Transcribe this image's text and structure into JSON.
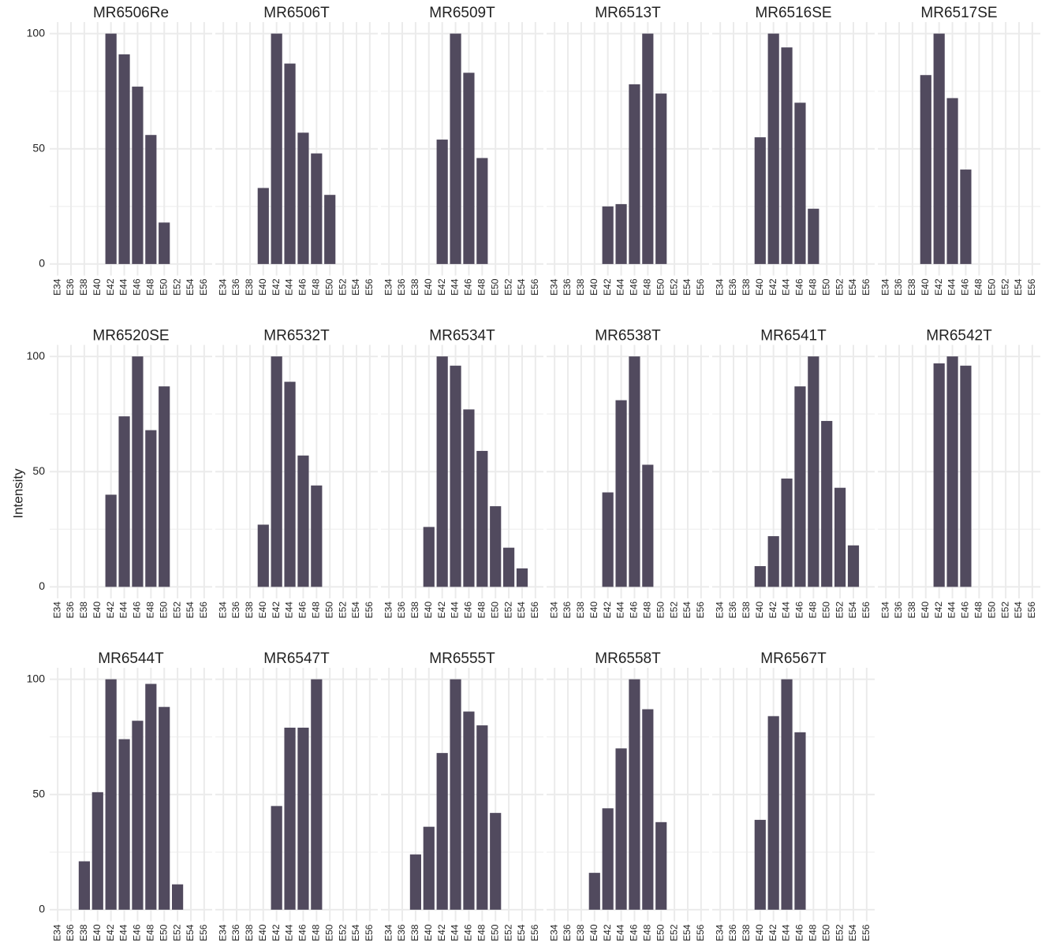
{
  "y_label": "Intensity",
  "chart_data": [
    {
      "type": "bar",
      "title": "MR6506Re",
      "categories": [
        "E34",
        "E36",
        "E38",
        "E40",
        "E42",
        "E44",
        "E46",
        "E48",
        "E50",
        "E52",
        "E54",
        "E56"
      ],
      "values": [
        0,
        0,
        0,
        0,
        100,
        91,
        77,
        56,
        18,
        0,
        0,
        0
      ],
      "color": "#514a5e",
      "ylim": [
        -5,
        105
      ],
      "yticks": [
        0,
        50,
        100
      ],
      "minor_yticks": [
        25,
        75
      ],
      "grid": true
    },
    {
      "type": "bar",
      "title": "MR6506T",
      "categories": [
        "E34",
        "E36",
        "E38",
        "E40",
        "E42",
        "E44",
        "E46",
        "E48",
        "E50",
        "E52",
        "E54",
        "E56"
      ],
      "values": [
        0,
        0,
        0,
        33,
        100,
        87,
        57,
        48,
        30,
        0,
        0,
        0
      ],
      "color": "#514a5e",
      "ylim": [
        -5,
        105
      ],
      "yticks": [
        0,
        50,
        100
      ],
      "minor_yticks": [
        25,
        75
      ],
      "grid": true
    },
    {
      "type": "bar",
      "title": "MR6509T",
      "categories": [
        "E34",
        "E36",
        "E38",
        "E40",
        "E42",
        "E44",
        "E46",
        "E48",
        "E50",
        "E52",
        "E54",
        "E56"
      ],
      "values": [
        0,
        0,
        0,
        0,
        54,
        100,
        83,
        46,
        0,
        0,
        0,
        0
      ],
      "color": "#514a5e",
      "ylim": [
        -5,
        105
      ],
      "yticks": [
        0,
        50,
        100
      ],
      "minor_yticks": [
        25,
        75
      ],
      "grid": true
    },
    {
      "type": "bar",
      "title": "MR6513T",
      "categories": [
        "E34",
        "E36",
        "E38",
        "E40",
        "E42",
        "E44",
        "E46",
        "E48",
        "E50",
        "E52",
        "E54",
        "E56"
      ],
      "values": [
        0,
        0,
        0,
        0,
        25,
        26,
        78,
        100,
        74,
        0,
        0,
        0
      ],
      "color": "#514a5e",
      "ylim": [
        -5,
        105
      ],
      "yticks": [
        0,
        50,
        100
      ],
      "minor_yticks": [
        25,
        75
      ],
      "grid": true
    },
    {
      "type": "bar",
      "title": "MR6516SE",
      "categories": [
        "E34",
        "E36",
        "E38",
        "E40",
        "E42",
        "E44",
        "E46",
        "E48",
        "E50",
        "E52",
        "E54",
        "E56"
      ],
      "values": [
        0,
        0,
        0,
        55,
        100,
        94,
        70,
        24,
        0,
        0,
        0,
        0
      ],
      "color": "#514a5e",
      "ylim": [
        -5,
        105
      ],
      "yticks": [
        0,
        50,
        100
      ],
      "minor_yticks": [
        25,
        75
      ],
      "grid": true
    },
    {
      "type": "bar",
      "title": "MR6517SE",
      "categories": [
        "E34",
        "E36",
        "E38",
        "E40",
        "E42",
        "E44",
        "E46",
        "E48",
        "E50",
        "E52",
        "E54",
        "E56"
      ],
      "values": [
        0,
        0,
        0,
        82,
        100,
        72,
        41,
        0,
        0,
        0,
        0,
        0
      ],
      "color": "#514a5e",
      "ylim": [
        -5,
        105
      ],
      "yticks": [
        0,
        50,
        100
      ],
      "minor_yticks": [
        25,
        75
      ],
      "grid": true
    },
    {
      "type": "bar",
      "title": "MR6520SE",
      "categories": [
        "E34",
        "E36",
        "E38",
        "E40",
        "E42",
        "E44",
        "E46",
        "E48",
        "E50",
        "E52",
        "E54",
        "E56"
      ],
      "values": [
        0,
        0,
        0,
        0,
        40,
        74,
        100,
        68,
        87,
        0,
        0,
        0
      ],
      "color": "#514a5e",
      "ylim": [
        -5,
        105
      ],
      "yticks": [
        0,
        50,
        100
      ],
      "minor_yticks": [
        25,
        75
      ],
      "grid": true
    },
    {
      "type": "bar",
      "title": "MR6532T",
      "categories": [
        "E34",
        "E36",
        "E38",
        "E40",
        "E42",
        "E44",
        "E46",
        "E48",
        "E50",
        "E52",
        "E54",
        "E56"
      ],
      "values": [
        0,
        0,
        0,
        27,
        100,
        89,
        57,
        44,
        0,
        0,
        0,
        0
      ],
      "color": "#514a5e",
      "ylim": [
        -5,
        105
      ],
      "yticks": [
        0,
        50,
        100
      ],
      "minor_yticks": [
        25,
        75
      ],
      "grid": true
    },
    {
      "type": "bar",
      "title": "MR6534T",
      "categories": [
        "E34",
        "E36",
        "E38",
        "E40",
        "E42",
        "E44",
        "E46",
        "E48",
        "E50",
        "E52",
        "E54",
        "E56"
      ],
      "values": [
        0,
        0,
        0,
        26,
        100,
        96,
        77,
        59,
        35,
        17,
        8,
        0
      ],
      "color": "#514a5e",
      "ylim": [
        -5,
        105
      ],
      "yticks": [
        0,
        50,
        100
      ],
      "minor_yticks": [
        25,
        75
      ],
      "grid": true
    },
    {
      "type": "bar",
      "title": "MR6538T",
      "categories": [
        "E34",
        "E36",
        "E38",
        "E40",
        "E42",
        "E44",
        "E46",
        "E48",
        "E50",
        "E52",
        "E54",
        "E56"
      ],
      "values": [
        0,
        0,
        0,
        0,
        41,
        81,
        100,
        53,
        0,
        0,
        0,
        0
      ],
      "color": "#514a5e",
      "ylim": [
        -5,
        105
      ],
      "yticks": [
        0,
        50,
        100
      ],
      "minor_yticks": [
        25,
        75
      ],
      "grid": true
    },
    {
      "type": "bar",
      "title": "MR6541T",
      "categories": [
        "E34",
        "E36",
        "E38",
        "E40",
        "E42",
        "E44",
        "E46",
        "E48",
        "E50",
        "E52",
        "E54",
        "E56"
      ],
      "values": [
        0,
        0,
        0,
        9,
        22,
        47,
        87,
        100,
        72,
        43,
        18,
        0
      ],
      "color": "#514a5e",
      "ylim": [
        -5,
        105
      ],
      "yticks": [
        0,
        50,
        100
      ],
      "minor_yticks": [
        25,
        75
      ],
      "grid": true
    },
    {
      "type": "bar",
      "title": "MR6542T",
      "categories": [
        "E34",
        "E36",
        "E38",
        "E40",
        "E42",
        "E44",
        "E46",
        "E48",
        "E50",
        "E52",
        "E54",
        "E56"
      ],
      "values": [
        0,
        0,
        0,
        0,
        97,
        100,
        96,
        0,
        0,
        0,
        0,
        0
      ],
      "color": "#514a5e",
      "ylim": [
        -5,
        105
      ],
      "yticks": [
        0,
        50,
        100
      ],
      "minor_yticks": [
        25,
        75
      ],
      "grid": true
    },
    {
      "type": "bar",
      "title": "MR6544T",
      "categories": [
        "E34",
        "E36",
        "E38",
        "E40",
        "E42",
        "E44",
        "E46",
        "E48",
        "E50",
        "E52",
        "E54",
        "E56"
      ],
      "values": [
        0,
        0,
        21,
        51,
        100,
        74,
        82,
        98,
        88,
        11,
        0,
        0
      ],
      "color": "#514a5e",
      "ylim": [
        -5,
        105
      ],
      "yticks": [
        0,
        50,
        100
      ],
      "minor_yticks": [
        25,
        75
      ],
      "grid": true
    },
    {
      "type": "bar",
      "title": "MR6547T",
      "categories": [
        "E34",
        "E36",
        "E38",
        "E40",
        "E42",
        "E44",
        "E46",
        "E48",
        "E50",
        "E52",
        "E54",
        "E56"
      ],
      "values": [
        0,
        0,
        0,
        0,
        45,
        79,
        79,
        100,
        0,
        0,
        0,
        0
      ],
      "color": "#514a5e",
      "ylim": [
        -5,
        105
      ],
      "yticks": [
        0,
        50,
        100
      ],
      "minor_yticks": [
        25,
        75
      ],
      "grid": true
    },
    {
      "type": "bar",
      "title": "MR6555T",
      "categories": [
        "E34",
        "E36",
        "E38",
        "E40",
        "E42",
        "E44",
        "E46",
        "E48",
        "E50",
        "E52",
        "E54",
        "E56"
      ],
      "values": [
        0,
        0,
        24,
        36,
        68,
        100,
        86,
        80,
        42,
        0,
        0,
        0
      ],
      "color": "#514a5e",
      "ylim": [
        -5,
        105
      ],
      "yticks": [
        0,
        50,
        100
      ],
      "minor_yticks": [
        25,
        75
      ],
      "grid": true
    },
    {
      "type": "bar",
      "title": "MR6558T",
      "categories": [
        "E34",
        "E36",
        "E38",
        "E40",
        "E42",
        "E44",
        "E46",
        "E48",
        "E50",
        "E52",
        "E54",
        "E56"
      ],
      "values": [
        0,
        0,
        0,
        16,
        44,
        70,
        100,
        87,
        38,
        0,
        0,
        0
      ],
      "color": "#514a5e",
      "ylim": [
        -5,
        105
      ],
      "yticks": [
        0,
        50,
        100
      ],
      "minor_yticks": [
        25,
        75
      ],
      "grid": true
    },
    {
      "type": "bar",
      "title": "MR6567T",
      "categories": [
        "E34",
        "E36",
        "E38",
        "E40",
        "E42",
        "E44",
        "E46",
        "E48",
        "E50",
        "E52",
        "E54",
        "E56"
      ],
      "values": [
        0,
        0,
        0,
        39,
        84,
        100,
        77,
        0,
        0,
        0,
        0,
        0
      ],
      "color": "#514a5e",
      "ylim": [
        -5,
        105
      ],
      "yticks": [
        0,
        50,
        100
      ],
      "minor_yticks": [
        25,
        75
      ],
      "grid": true
    }
  ]
}
